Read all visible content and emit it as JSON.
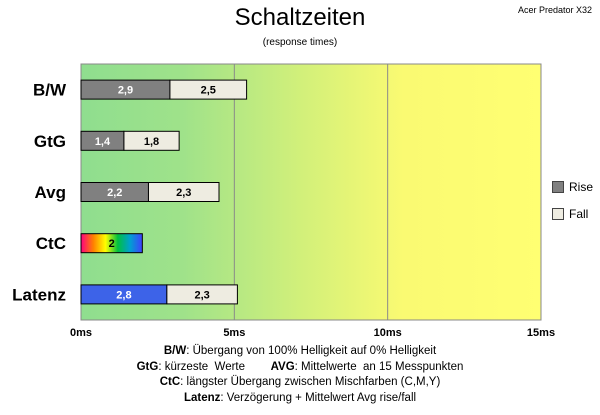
{
  "corner_label": "Acer Predator X32",
  "chart_data": {
    "type": "bar",
    "orientation": "horizontal",
    "stacked": true,
    "title": "Schaltzeiten",
    "subtitle": "(response times)",
    "categories": [
      "B/W",
      "GtG",
      "Avg",
      "CtC",
      "Latenz"
    ],
    "series": [
      {
        "name": "Rise",
        "values": [
          2.9,
          1.4,
          2.2,
          2.0,
          2.8
        ],
        "labels": [
          "2,9",
          "1,4",
          "2,2",
          "2",
          "2,8"
        ],
        "color": "#808080"
      },
      {
        "name": "Fall",
        "values": [
          2.5,
          1.8,
          2.3,
          null,
          2.3
        ],
        "labels": [
          "2,5",
          "1,8",
          "2,3",
          "",
          "2,3"
        ],
        "color": "#eeece1"
      }
    ],
    "special_colors": {
      "CtC": "rainbow",
      "Latenz_rise": "#3d63e8"
    },
    "xlim": [
      0,
      15
    ],
    "xticks": [
      0,
      5,
      10,
      15
    ],
    "xtick_labels": [
      "0ms",
      "5ms",
      "10ms",
      "15ms"
    ],
    "grid": true,
    "background": "gradient green (#8fdf8f) to yellow (#ffff70)",
    "legend_position": "right"
  },
  "notes": [
    {
      "parts": [
        {
          "bold": "B/W",
          "text": ":  Übergang von 100% Helligkeit auf 0% Helligkeit"
        }
      ]
    },
    {
      "parts": [
        {
          "bold": "GtG",
          "text": ": kürzeste  Werte        "
        },
        {
          "bold": "AVG",
          "text": ": Mittelwerte  an 15 Messpunkten"
        }
      ]
    },
    {
      "parts": [
        {
          "bold": "CtC",
          "text": ": längster Übergang  zwischen Mischfarben  (C,M,Y)"
        }
      ]
    },
    {
      "parts": [
        {
          "bold": "Latenz",
          "text": ": Verzögerung  + Mittelwert  Avg rise/fall"
        }
      ]
    }
  ]
}
